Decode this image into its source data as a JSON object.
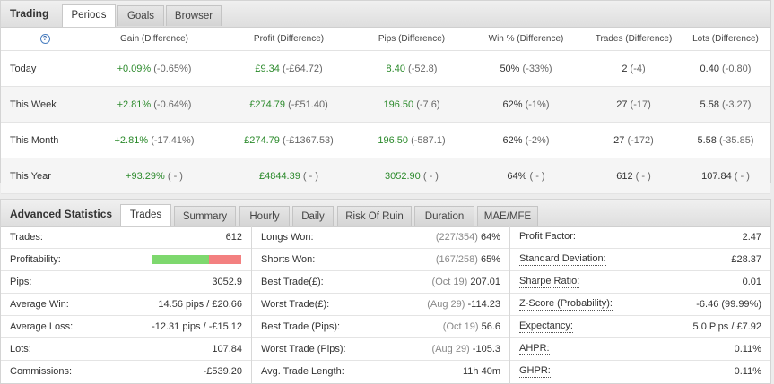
{
  "trading": {
    "title": "Trading",
    "tabs": [
      "Periods",
      "Goals",
      "Browser"
    ],
    "help_icon": "?",
    "columns": [
      "Gain (Difference)",
      "Profit (Difference)",
      "Pips (Difference)",
      "Win % (Difference)",
      "Trades (Difference)",
      "Lots (Difference)"
    ],
    "rows": [
      {
        "label": "Today",
        "gain": "+0.09%",
        "gain_d": "(-0.65%)",
        "profit": "£9.34",
        "profit_d": "(-£64.72)",
        "pips": "8.40",
        "pips_d": "(-52.8)",
        "win": "50%",
        "win_d": "(-33%)",
        "trades": "2",
        "trades_d": "(-4)",
        "lots": "0.40",
        "lots_d": "(-0.80)"
      },
      {
        "label": "This Week",
        "gain": "+2.81%",
        "gain_d": "(-0.64%)",
        "profit": "£274.79",
        "profit_d": "(-£51.40)",
        "pips": "196.50",
        "pips_d": "(-7.6)",
        "win": "62%",
        "win_d": "(-1%)",
        "trades": "27",
        "trades_d": "(-17)",
        "lots": "5.58",
        "lots_d": "(-3.27)"
      },
      {
        "label": "This Month",
        "gain": "+2.81%",
        "gain_d": "(-17.41%)",
        "profit": "£274.79",
        "profit_d": "(-£1367.53)",
        "pips": "196.50",
        "pips_d": "(-587.1)",
        "win": "62%",
        "win_d": "(-2%)",
        "trades": "27",
        "trades_d": "(-172)",
        "lots": "5.58",
        "lots_d": "(-35.85)"
      },
      {
        "label": "This Year",
        "gain": "+93.29%",
        "gain_d": "( - )",
        "profit": "£4844.39",
        "profit_d": "( - )",
        "pips": "3052.90",
        "pips_d": "( - )",
        "win": "64%",
        "win_d": "( - )",
        "trades": "612",
        "trades_d": "( - )",
        "lots": "107.84",
        "lots_d": "( - )"
      }
    ]
  },
  "advanced": {
    "title": "Advanced Statistics",
    "tabs": [
      "Trades",
      "Summary",
      "Hourly",
      "Daily",
      "Risk Of Ruin",
      "Duration",
      "MAE/MFE"
    ],
    "col1": [
      {
        "k": "Trades:",
        "v": "612"
      },
      {
        "k": "Profitability:",
        "v": ""
      },
      {
        "k": "Pips:",
        "v": "3052.9"
      },
      {
        "k": "Average Win:",
        "v": "14.56 pips / £20.66"
      },
      {
        "k": "Average Loss:",
        "v": "-12.31 pips / -£15.12"
      },
      {
        "k": "Lots:",
        "v": "107.84"
      },
      {
        "k": "Commissions:",
        "v": "-£539.20"
      }
    ],
    "profitability": {
      "win_fraction": 0.64,
      "win_color": "#7ed86e",
      "loss_color": "#f38080"
    },
    "col2": [
      {
        "k": "Longs Won:",
        "m": "(227/354)",
        "v": "64%"
      },
      {
        "k": "Shorts Won:",
        "m": "(167/258)",
        "v": "65%"
      },
      {
        "k": "Best Trade(£):",
        "m": "(Oct 19)",
        "v": "207.01"
      },
      {
        "k": "Worst Trade(£):",
        "m": "(Aug 29)",
        "v": "-114.23"
      },
      {
        "k": "Best Trade (Pips):",
        "m": "(Oct 19)",
        "v": "56.6"
      },
      {
        "k": "Worst Trade (Pips):",
        "m": "(Aug 29)",
        "v": "-105.3"
      },
      {
        "k": "Avg. Trade Length:",
        "m": "",
        "v": "11h 40m"
      }
    ],
    "col3": [
      {
        "k": "Profit Factor:",
        "v": "2.47"
      },
      {
        "k": "Standard Deviation:",
        "v": "£28.37"
      },
      {
        "k": "Sharpe Ratio:",
        "v": "0.01"
      },
      {
        "k": "Z-Score (Probability):",
        "v": "-6.46 (99.99%)"
      },
      {
        "k": "Expectancy:",
        "v": "5.0 Pips / £7.92"
      },
      {
        "k": "AHPR:",
        "v": "0.11%"
      },
      {
        "k": "GHPR:",
        "v": "0.11%"
      }
    ]
  },
  "colors": {
    "positive": "#2b8a2b",
    "muted": "#888888"
  }
}
